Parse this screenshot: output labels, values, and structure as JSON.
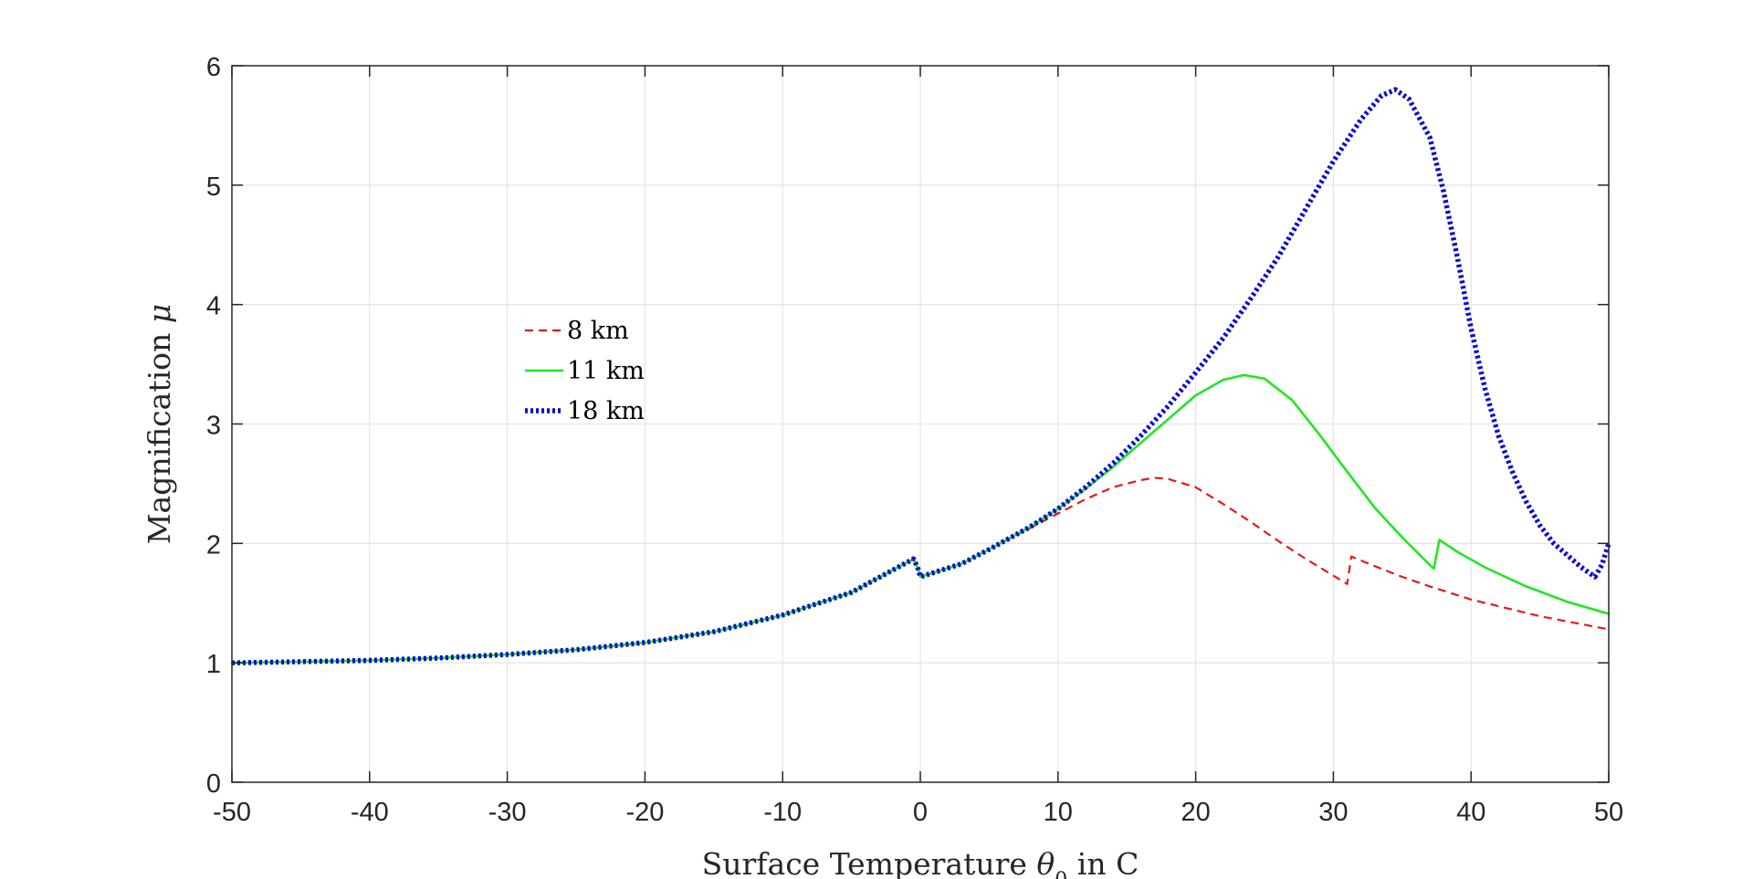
{
  "chart_data": {
    "type": "line",
    "title": "",
    "xlabel": "Surface Temperature",
    "xlabel_symbol": "θ",
    "xlabel_sub": "0",
    "xlabel_unit": "in C",
    "ylabel": "Magnification",
    "ylabel_symbol": "μ",
    "xlim": [
      -50,
      50
    ],
    "ylim": [
      0,
      6
    ],
    "xticks": [
      -50,
      -40,
      -30,
      -20,
      -10,
      0,
      10,
      20,
      30,
      40,
      50
    ],
    "yticks": [
      0,
      1,
      2,
      3,
      4,
      5,
      6
    ],
    "grid": true,
    "legend_position": "center-left",
    "series": [
      {
        "name": "8 km",
        "color": "#e41a1c",
        "style": "dashed",
        "points": [
          [
            -50,
            1.0
          ],
          [
            -45,
            1.01
          ],
          [
            -40,
            1.02
          ],
          [
            -35,
            1.04
          ],
          [
            -30,
            1.07
          ],
          [
            -25,
            1.11
          ],
          [
            -20,
            1.17
          ],
          [
            -15,
            1.26
          ],
          [
            -10,
            1.4
          ],
          [
            -5,
            1.59
          ],
          [
            -0.5,
            1.87
          ],
          [
            -0.2,
            1.8
          ],
          [
            0,
            1.72
          ],
          [
            3,
            1.83
          ],
          [
            5,
            1.95
          ],
          [
            8,
            2.13
          ],
          [
            10,
            2.25
          ],
          [
            12,
            2.37
          ],
          [
            14,
            2.47
          ],
          [
            16,
            2.53
          ],
          [
            17,
            2.55
          ],
          [
            18,
            2.54
          ],
          [
            20,
            2.47
          ],
          [
            22,
            2.33
          ],
          [
            24,
            2.18
          ],
          [
            26,
            2.02
          ],
          [
            28,
            1.87
          ],
          [
            30,
            1.73
          ],
          [
            31,
            1.66
          ],
          [
            31.3,
            1.89
          ],
          [
            33,
            1.81
          ],
          [
            35,
            1.72
          ],
          [
            37,
            1.64
          ],
          [
            40,
            1.53
          ],
          [
            45,
            1.39
          ],
          [
            50,
            1.28
          ]
        ]
      },
      {
        "name": "11 km",
        "color": "#22e622",
        "style": "solid",
        "points": [
          [
            -50,
            1.0
          ],
          [
            -45,
            1.01
          ],
          [
            -40,
            1.02
          ],
          [
            -35,
            1.04
          ],
          [
            -30,
            1.07
          ],
          [
            -25,
            1.11
          ],
          [
            -20,
            1.17
          ],
          [
            -15,
            1.26
          ],
          [
            -10,
            1.4
          ],
          [
            -5,
            1.59
          ],
          [
            -0.5,
            1.87
          ],
          [
            -0.2,
            1.8
          ],
          [
            0,
            1.72
          ],
          [
            3,
            1.83
          ],
          [
            5,
            1.95
          ],
          [
            8,
            2.14
          ],
          [
            10,
            2.29
          ],
          [
            12,
            2.46
          ],
          [
            14,
            2.64
          ],
          [
            16,
            2.84
          ],
          [
            18,
            3.04
          ],
          [
            20,
            3.24
          ],
          [
            22,
            3.37
          ],
          [
            23.5,
            3.41
          ],
          [
            25,
            3.38
          ],
          [
            27,
            3.2
          ],
          [
            29,
            2.91
          ],
          [
            31,
            2.6
          ],
          [
            33,
            2.3
          ],
          [
            35,
            2.05
          ],
          [
            37,
            1.82
          ],
          [
            37.3,
            1.79
          ],
          [
            37.7,
            2.03
          ],
          [
            39,
            1.93
          ],
          [
            41,
            1.8
          ],
          [
            44,
            1.64
          ],
          [
            47,
            1.51
          ],
          [
            50,
            1.41
          ]
        ]
      },
      {
        "name": "18 km",
        "color": "#0a0ad6",
        "style": "dotted",
        "points": [
          [
            -50,
            1.0
          ],
          [
            -45,
            1.01
          ],
          [
            -40,
            1.02
          ],
          [
            -35,
            1.04
          ],
          [
            -30,
            1.07
          ],
          [
            -25,
            1.11
          ],
          [
            -20,
            1.17
          ],
          [
            -15,
            1.26
          ],
          [
            -10,
            1.4
          ],
          [
            -5,
            1.59
          ],
          [
            -0.5,
            1.87
          ],
          [
            -0.2,
            1.8
          ],
          [
            0,
            1.72
          ],
          [
            3,
            1.83
          ],
          [
            5,
            1.95
          ],
          [
            8,
            2.14
          ],
          [
            10,
            2.29
          ],
          [
            12,
            2.47
          ],
          [
            14,
            2.67
          ],
          [
            16,
            2.9
          ],
          [
            18,
            3.15
          ],
          [
            20,
            3.43
          ],
          [
            22,
            3.72
          ],
          [
            24,
            4.05
          ],
          [
            26,
            4.4
          ],
          [
            28,
            4.8
          ],
          [
            30,
            5.2
          ],
          [
            32,
            5.55
          ],
          [
            33.5,
            5.75
          ],
          [
            34.5,
            5.8
          ],
          [
            35.5,
            5.72
          ],
          [
            37,
            5.4
          ],
          [
            38,
            4.95
          ],
          [
            39,
            4.4
          ],
          [
            40,
            3.8
          ],
          [
            41,
            3.3
          ],
          [
            42,
            2.9
          ],
          [
            43,
            2.6
          ],
          [
            44,
            2.35
          ],
          [
            45,
            2.15
          ],
          [
            46,
            2.0
          ],
          [
            47,
            1.9
          ],
          [
            48,
            1.8
          ],
          [
            49,
            1.72
          ],
          [
            49.5,
            1.82
          ],
          [
            50,
            2.0
          ]
        ]
      }
    ]
  }
}
